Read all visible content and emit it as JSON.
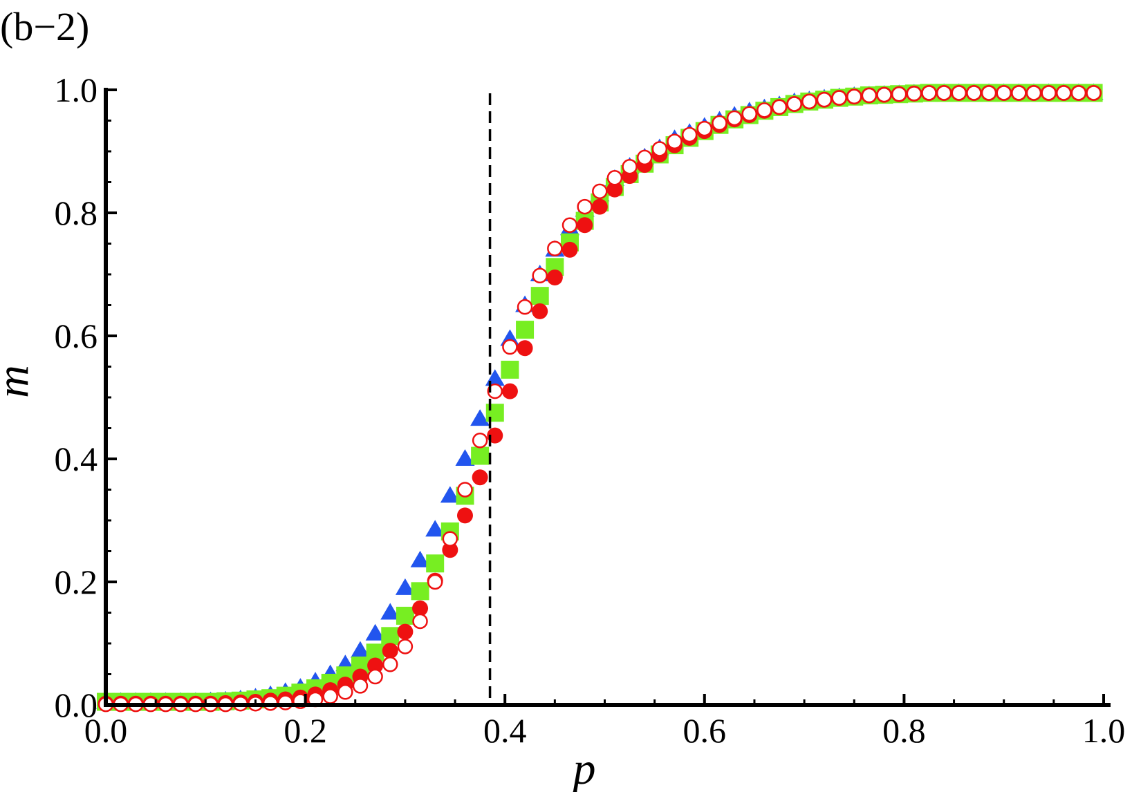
{
  "chart_data": {
    "type": "scatter",
    "panel_label": "(b−2)",
    "xlabel": "p",
    "ylabel": "m",
    "xlim": [
      0,
      1
    ],
    "ylim": [
      0,
      1
    ],
    "x_ticks": [
      "0.0",
      "0.2",
      "0.4",
      "0.6",
      "0.8",
      "1.0"
    ],
    "y_ticks": [
      "0.0",
      "0.2",
      "0.4",
      "0.6",
      "0.8",
      "1.0"
    ],
    "grid": false,
    "legend": "none",
    "critical_line": {
      "x": 0.385,
      "style": "dashed"
    },
    "x": [
      0.0,
      0.015,
      0.03,
      0.045,
      0.06,
      0.075,
      0.09,
      0.105,
      0.12,
      0.135,
      0.15,
      0.165,
      0.18,
      0.195,
      0.21,
      0.225,
      0.24,
      0.255,
      0.27,
      0.285,
      0.3,
      0.315,
      0.33,
      0.345,
      0.36,
      0.375,
      0.39,
      0.405,
      0.42,
      0.435,
      0.45,
      0.465,
      0.48,
      0.495,
      0.51,
      0.525,
      0.54,
      0.555,
      0.57,
      0.585,
      0.6,
      0.615,
      0.63,
      0.645,
      0.66,
      0.675,
      0.69,
      0.705,
      0.72,
      0.735,
      0.75,
      0.765,
      0.78,
      0.795,
      0.81,
      0.825,
      0.84,
      0.855,
      0.87,
      0.885,
      0.9,
      0.915,
      0.93,
      0.945,
      0.96,
      0.975,
      0.99
    ],
    "series": [
      {
        "marker": "triangle",
        "color": "#2255ee",
        "values": [
          0.005,
          0.005,
          0.005,
          0.005,
          0.005,
          0.005,
          0.005,
          0.006,
          0.007,
          0.009,
          0.012,
          0.016,
          0.021,
          0.028,
          0.038,
          0.05,
          0.066,
          0.088,
          0.116,
          0.15,
          0.19,
          0.235,
          0.285,
          0.34,
          0.4,
          0.465,
          0.53,
          0.595,
          0.65,
          0.7,
          0.74,
          0.775,
          0.805,
          0.83,
          0.855,
          0.875,
          0.89,
          0.905,
          0.92,
          0.93,
          0.94,
          0.95,
          0.958,
          0.965,
          0.97,
          0.975,
          0.98,
          0.983,
          0.986,
          0.988,
          0.99,
          0.991,
          0.992,
          0.993,
          0.994,
          0.994,
          0.995,
          0.995,
          0.995,
          0.995,
          0.995,
          0.995,
          0.995,
          0.995,
          0.995,
          0.995,
          0.995
        ]
      },
      {
        "marker": "square",
        "color": "#77ee22",
        "values": [
          0.005,
          0.005,
          0.005,
          0.005,
          0.005,
          0.005,
          0.005,
          0.005,
          0.006,
          0.007,
          0.009,
          0.011,
          0.015,
          0.02,
          0.027,
          0.036,
          0.048,
          0.064,
          0.085,
          0.112,
          0.145,
          0.185,
          0.23,
          0.282,
          0.34,
          0.405,
          0.475,
          0.545,
          0.61,
          0.665,
          0.712,
          0.752,
          0.787,
          0.817,
          0.842,
          0.863,
          0.88,
          0.895,
          0.91,
          0.922,
          0.933,
          0.943,
          0.952,
          0.959,
          0.966,
          0.972,
          0.977,
          0.981,
          0.984,
          0.987,
          0.989,
          0.991,
          0.992,
          0.993,
          0.994,
          0.995,
          0.995,
          0.995,
          0.995,
          0.995,
          0.995,
          0.995,
          0.995,
          0.995,
          0.995,
          0.995,
          0.995
        ]
      },
      {
        "marker": "filled-circle",
        "color": "#ee1111",
        "values": [
          0.002,
          0.002,
          0.002,
          0.002,
          0.002,
          0.002,
          0.002,
          0.002,
          0.003,
          0.004,
          0.005,
          0.007,
          0.009,
          0.012,
          0.017,
          0.024,
          0.033,
          0.046,
          0.064,
          0.088,
          0.119,
          0.157,
          0.202,
          0.252,
          0.308,
          0.37,
          0.438,
          0.51,
          0.58,
          0.64,
          0.695,
          0.74,
          0.78,
          0.81,
          0.838,
          0.86,
          0.878,
          0.895,
          0.91,
          0.922,
          0.933,
          0.943,
          0.952,
          0.959,
          0.966,
          0.972,
          0.977,
          0.981,
          0.984,
          0.987,
          0.989,
          0.991,
          0.992,
          0.993,
          0.994,
          0.995,
          0.995,
          0.995,
          0.995,
          0.995,
          0.995,
          0.995,
          0.995,
          0.995,
          0.995,
          0.995,
          0.995
        ]
      },
      {
        "marker": "open-circle",
        "color": "#ee1111",
        "values": [
          0.001,
          0.001,
          0.001,
          0.001,
          0.001,
          0.001,
          0.001,
          0.001,
          0.001,
          0.002,
          0.002,
          0.003,
          0.004,
          0.006,
          0.009,
          0.014,
          0.021,
          0.031,
          0.046,
          0.066,
          0.095,
          0.136,
          0.2,
          0.27,
          0.35,
          0.43,
          0.51,
          0.582,
          0.647,
          0.698,
          0.742,
          0.78,
          0.81,
          0.835,
          0.857,
          0.875,
          0.89,
          0.904,
          0.916,
          0.927,
          0.937,
          0.946,
          0.954,
          0.961,
          0.967,
          0.972,
          0.977,
          0.981,
          0.984,
          0.987,
          0.989,
          0.991,
          0.992,
          0.993,
          0.994,
          0.995,
          0.995,
          0.995,
          0.995,
          0.995,
          0.995,
          0.995,
          0.995,
          0.995,
          0.995,
          0.995,
          0.995
        ]
      }
    ]
  }
}
